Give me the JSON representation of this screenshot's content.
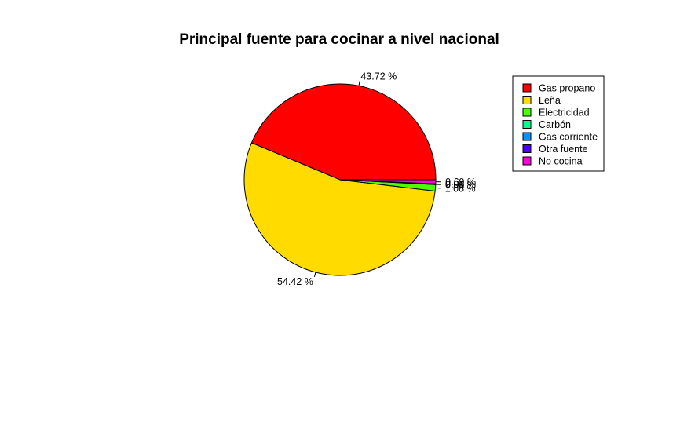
{
  "chart_data": {
    "type": "pie",
    "title": "Principal fuente para cocinar a nivel nacional",
    "categories": [
      "Gas propano",
      "Leña",
      "Electricidad",
      "Carbón",
      "Gas corriente",
      "Otra fuente",
      "No cocina"
    ],
    "values": [
      43.72,
      54.42,
      1.08,
      0.06,
      0.01,
      0.05,
      0.69
    ],
    "labels": [
      "43.72 %",
      "54.42 %",
      "1.08 %",
      "0.06 %",
      "0.01 %",
      "0.05 %",
      "0.69 %"
    ],
    "colors": [
      "#FF0000",
      "#FFDB00",
      "#49FF00",
      "#00FF92",
      "#0092FF",
      "#4900FF",
      "#FF00DB"
    ],
    "legend_position": "top-right"
  }
}
